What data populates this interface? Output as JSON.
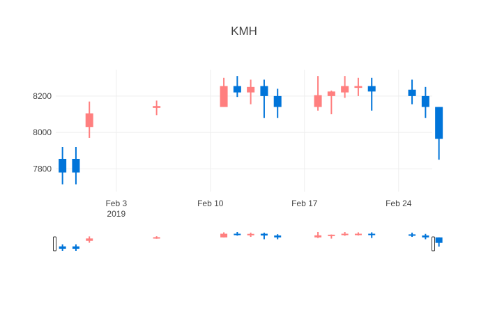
{
  "chart_data": {
    "type": "candlestick",
    "title": "KMH",
    "xlabel": "",
    "ylabel": "",
    "colors": {
      "increasing": "#FF851B",
      "increasing_alt": "#FF7F7F",
      "decreasing": "#0074D9"
    },
    "grid": true,
    "rangeslider": true,
    "x_tick_labels": [
      {
        "date": "2019-02-03",
        "label": "Feb 3",
        "sublabel": "2019"
      },
      {
        "date": "2019-02-10",
        "label": "Feb 10",
        "sublabel": ""
      },
      {
        "date": "2019-02-17",
        "label": "Feb 17",
        "sublabel": ""
      },
      {
        "date": "2019-02-24",
        "label": "Feb 24",
        "sublabel": ""
      }
    ],
    "y_tick_labels": [
      "7800",
      "8000",
      "8200"
    ],
    "y_ticks": [
      7800,
      8000,
      8200
    ],
    "xlim": [
      "2019-01-29T12:00",
      "2019-02-26T12:00"
    ],
    "ylim": [
      7675,
      8345
    ],
    "candles": [
      {
        "date": "2019-01-30",
        "open": 7855,
        "high": 7920,
        "low": 7715,
        "close": 7780
      },
      {
        "date": "2019-01-31",
        "open": 7855,
        "high": 7920,
        "low": 7715,
        "close": 7780
      },
      {
        "date": "2019-02-01",
        "open": 8030,
        "high": 8170,
        "low": 7970,
        "close": 8105
      },
      {
        "date": "2019-02-06",
        "open": 8135,
        "high": 8175,
        "low": 8095,
        "close": 8145
      },
      {
        "date": "2019-02-11",
        "open": 8140,
        "high": 8300,
        "low": 8140,
        "close": 8255
      },
      {
        "date": "2019-02-12",
        "open": 8255,
        "high": 8310,
        "low": 8195,
        "close": 8220
      },
      {
        "date": "2019-02-13",
        "open": 8220,
        "high": 8290,
        "low": 8155,
        "close": 8250
      },
      {
        "date": "2019-02-14",
        "open": 8255,
        "high": 8290,
        "low": 8080,
        "close": 8200
      },
      {
        "date": "2019-02-15",
        "open": 8200,
        "high": 8240,
        "low": 8080,
        "close": 8140
      },
      {
        "date": "2019-02-18",
        "open": 8140,
        "high": 8310,
        "low": 8120,
        "close": 8205
      },
      {
        "date": "2019-02-19",
        "open": 8200,
        "high": 8230,
        "low": 8100,
        "close": 8225
      },
      {
        "date": "2019-02-20",
        "open": 8220,
        "high": 8310,
        "low": 8190,
        "close": 8255
      },
      {
        "date": "2019-02-21",
        "open": 8245,
        "high": 8300,
        "low": 8200,
        "close": 8255
      },
      {
        "date": "2019-02-22",
        "open": 8255,
        "high": 8300,
        "low": 8120,
        "close": 8225
      },
      {
        "date": "2019-02-25",
        "open": 8235,
        "high": 8290,
        "low": 8155,
        "close": 8200
      },
      {
        "date": "2019-02-26",
        "open": 8200,
        "high": 8250,
        "low": 8080,
        "close": 8140
      },
      {
        "date": "2019-02-27",
        "open": 8140,
        "high": 8140,
        "low": 7850,
        "close": 7965
      }
    ]
  }
}
